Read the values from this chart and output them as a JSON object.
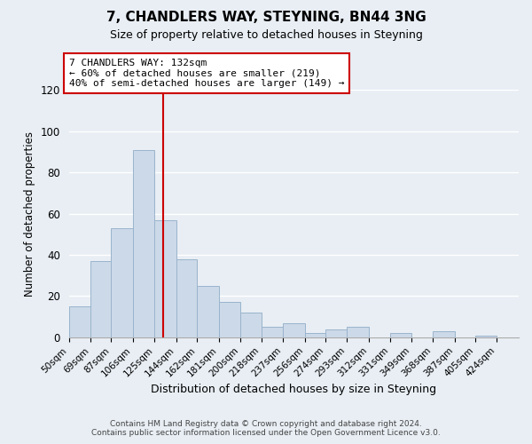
{
  "title": "7, CHANDLERS WAY, STEYNING, BN44 3NG",
  "subtitle": "Size of property relative to detached houses in Steyning",
  "xlabel": "Distribution of detached houses by size in Steyning",
  "ylabel": "Number of detached properties",
  "bin_labels": [
    "50sqm",
    "69sqm",
    "87sqm",
    "106sqm",
    "125sqm",
    "144sqm",
    "162sqm",
    "181sqm",
    "200sqm",
    "218sqm",
    "237sqm",
    "256sqm",
    "274sqm",
    "293sqm",
    "312sqm",
    "331sqm",
    "349sqm",
    "368sqm",
    "387sqm",
    "405sqm",
    "424sqm"
  ],
  "bin_edges": [
    50,
    69,
    87,
    106,
    125,
    144,
    162,
    181,
    200,
    218,
    237,
    256,
    274,
    293,
    312,
    331,
    349,
    368,
    387,
    405,
    424,
    443
  ],
  "bar_heights": [
    15,
    37,
    53,
    91,
    57,
    38,
    25,
    17,
    12,
    5,
    7,
    2,
    4,
    5,
    0,
    2,
    0,
    3,
    0,
    1,
    0
  ],
  "bar_color": "#ccd9e8",
  "bar_edgecolor": "#9ab4cc",
  "vline_x": 132,
  "vline_color": "#cc0000",
  "ylim": [
    0,
    120
  ],
  "yticks": [
    0,
    20,
    40,
    60,
    80,
    100,
    120
  ],
  "annotation_line1": "7 CHANDLERS WAY: 132sqm",
  "annotation_line2": "← 60% of detached houses are smaller (219)",
  "annotation_line3": "40% of semi-detached houses are larger (149) →",
  "annotation_box_color": "#ffffff",
  "annotation_box_edgecolor": "#cc0000",
  "footer_line1": "Contains HM Land Registry data © Crown copyright and database right 2024.",
  "footer_line2": "Contains public sector information licensed under the Open Government Licence v3.0.",
  "background_color": "#e8eef4",
  "grid_color": "#ffffff"
}
